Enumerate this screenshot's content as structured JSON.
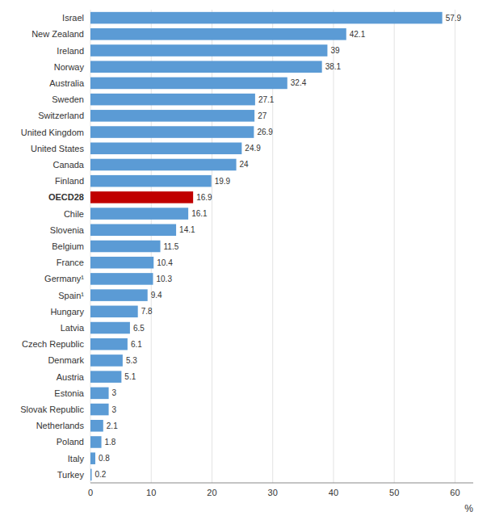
{
  "chart_data": {
    "type": "bar",
    "orientation": "horizontal",
    "categories": [
      "Turkey",
      "Italy",
      "Poland",
      "Netherlands",
      "Slovak Republic",
      "Estonia",
      "Austria",
      "Denmark",
      "Czech Republic",
      "Latvia",
      "Hungary",
      "Spain¹",
      "Germany¹",
      "France",
      "Belgium",
      "Slovenia",
      "Chile",
      "OECD28",
      "Finland",
      "Canada",
      "United States",
      "United Kingdom",
      "Switzerland",
      "Sweden",
      "Australia",
      "Norway",
      "Ireland",
      "New Zealand",
      "Israel"
    ],
    "values": [
      0.2,
      0.8,
      1.8,
      2.1,
      3.0,
      3.0,
      5.1,
      5.3,
      6.1,
      6.5,
      7.8,
      9.4,
      10.3,
      10.4,
      11.5,
      14.1,
      16.1,
      16.9,
      19.9,
      24.0,
      24.9,
      26.9,
      27.0,
      27.1,
      32.4,
      38.1,
      39.0,
      42.1,
      57.9
    ],
    "colors": [
      "#5b9bd5",
      "#5b9bd5",
      "#5b9bd5",
      "#5b9bd5",
      "#5b9bd5",
      "#5b9bd5",
      "#5b9bd5",
      "#5b9bd5",
      "#5b9bd5",
      "#5b9bd5",
      "#5b9bd5",
      "#5b9bd5",
      "#5b9bd5",
      "#5b9bd5",
      "#5b9bd5",
      "#5b9bd5",
      "#5b9bd5",
      "#c00000",
      "#5b9bd5",
      "#5b9bd5",
      "#5b9bd5",
      "#5b9bd5",
      "#5b9bd5",
      "#5b9bd5",
      "#5b9bd5",
      "#5b9bd5",
      "#5b9bd5",
      "#5b9bd5",
      "#5b9bd5"
    ],
    "xlabel": "%",
    "xlim": [
      0,
      63
    ],
    "xticks": [
      0,
      10,
      20,
      30,
      40,
      50,
      60
    ],
    "grid": true,
    "data_labels": true
  }
}
